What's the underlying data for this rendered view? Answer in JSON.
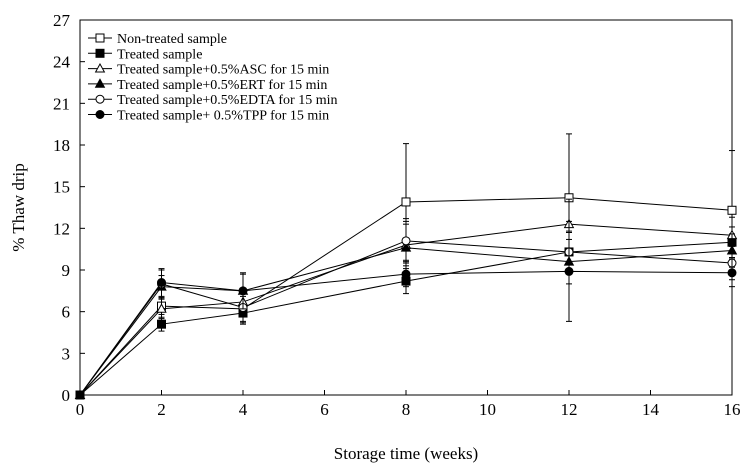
{
  "chart_data": {
    "type": "line",
    "xlabel": "Storage time (weeks)",
    "ylabel": "% Thaw drip",
    "xlim": [
      0,
      16
    ],
    "ylim": [
      0,
      27
    ],
    "xticks": [
      0,
      2,
      4,
      6,
      8,
      10,
      12,
      14,
      16
    ],
    "yticks": [
      0,
      3,
      6,
      9,
      12,
      15,
      18,
      21,
      24,
      27
    ],
    "grid": false,
    "legend_position": "top-left",
    "x": [
      0,
      2,
      4,
      8,
      12,
      16
    ],
    "series": [
      {
        "name": "Non-treated sample",
        "marker": "square-open",
        "values": [
          0,
          6.4,
          6.2,
          13.9,
          14.2,
          13.3
        ],
        "error": [
          0,
          0.6,
          0.9,
          4.2,
          4.6,
          4.3
        ]
      },
      {
        "name": "Treated sample",
        "marker": "square-filled",
        "values": [
          0,
          5.1,
          5.9,
          8.2,
          10.3,
          11.0
        ],
        "error": [
          0,
          0.5,
          0.7,
          0.9,
          1.4,
          1.1
        ]
      },
      {
        "name": "Treated sample+0.5%ASC for 15 min",
        "marker": "triangle-open",
        "values": [
          0,
          6.2,
          6.7,
          10.8,
          12.3,
          11.5
        ],
        "error": [
          0,
          0.7,
          1.0,
          1.5,
          1.8,
          1.3
        ]
      },
      {
        "name": "Treated sample+0.5%ERT for 15 min",
        "marker": "triangle-filled",
        "values": [
          0,
          7.8,
          7.5,
          10.6,
          9.6,
          10.4
        ],
        "error": [
          0,
          0.8,
          1.2,
          1.9,
          1.6,
          1.2
        ]
      },
      {
        "name": "Treated sample+0.5%EDTA for 15 min",
        "marker": "circle-open",
        "values": [
          0,
          8.0,
          6.3,
          11.1,
          10.3,
          9.5
        ],
        "error": [
          0,
          1.0,
          1.2,
          1.6,
          1.5,
          1.2
        ]
      },
      {
        "name": "Treated sample+ 0.5%TPP for 15 min",
        "marker": "circle-filled",
        "values": [
          0,
          8.1,
          7.5,
          8.7,
          8.9,
          8.8
        ],
        "error": [
          0,
          1.0,
          1.3,
          0.9,
          3.6,
          1.0
        ]
      }
    ]
  }
}
